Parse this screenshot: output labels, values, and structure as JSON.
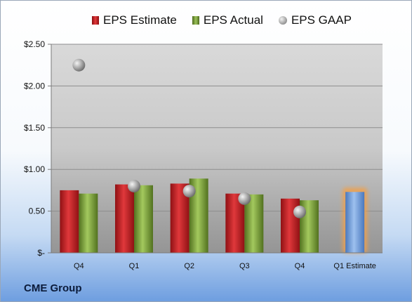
{
  "chart_data": {
    "type": "bar",
    "categories": [
      "Q4",
      "Q1",
      "Q2",
      "Q3",
      "Q4",
      "Q1 Estimate"
    ],
    "series": [
      {
        "name": "EPS Estimate",
        "values": [
          0.75,
          0.82,
          0.83,
          0.71,
          0.65,
          null
        ]
      },
      {
        "name": "EPS Actual",
        "values": [
          0.71,
          0.81,
          0.89,
          0.7,
          0.63,
          null
        ]
      },
      {
        "name": "EPS GAAP",
        "values": [
          2.25,
          0.8,
          0.74,
          0.65,
          0.49,
          null
        ]
      },
      {
        "name": "Q1 Estimate",
        "values": [
          null,
          null,
          null,
          null,
          null,
          0.73
        ]
      }
    ],
    "yticks": [
      "$-",
      "0.50",
      "$1.00",
      "$1.50",
      "$2.00",
      "$2.50"
    ],
    "ylim": [
      0,
      2.5
    ],
    "title": "",
    "xlabel": "",
    "ylabel": "",
    "legend_position": "top",
    "grid": true,
    "colors": {
      "estimate": "#c0262b",
      "actual": "#77a33a",
      "gaap": "#a0a0a0",
      "q1_estimate": "#6f9bd8",
      "q1_estimate_glow": "#f0a04b"
    }
  },
  "legend": {
    "estimate": "EPS Estimate",
    "actual": "EPS Actual",
    "gaap": "EPS GAAP"
  },
  "footer": {
    "company": "CME Group"
  }
}
